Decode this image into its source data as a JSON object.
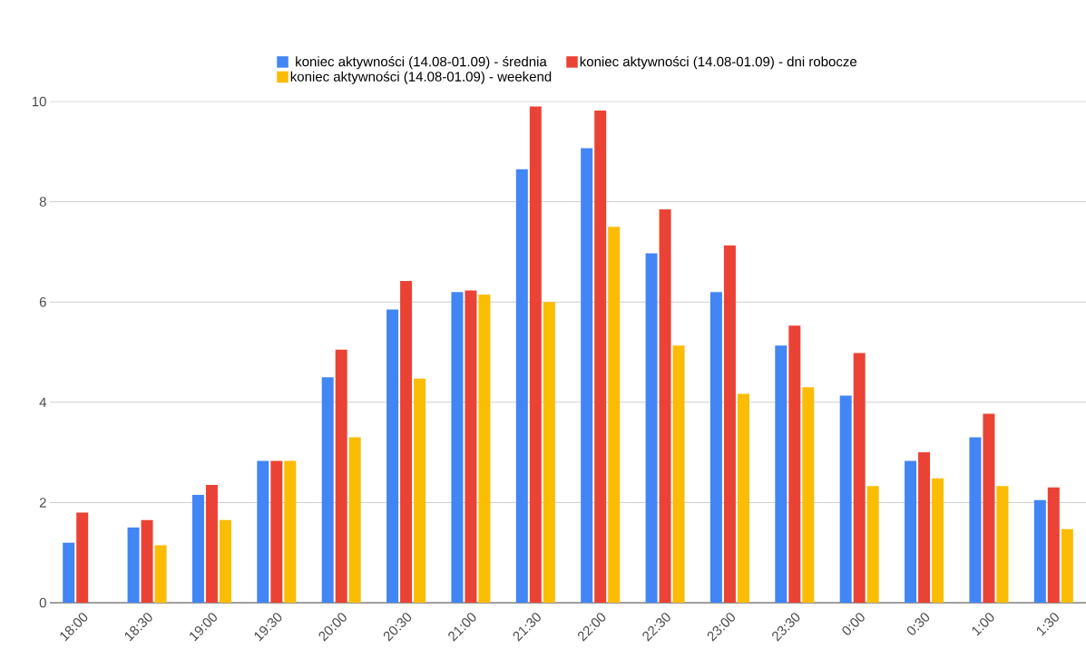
{
  "chart_data": {
    "type": "bar",
    "categories": [
      "18:00",
      "18:30",
      "19:00",
      "19:30",
      "20:00",
      "20:30",
      "21:00",
      "21:30",
      "22:00",
      "22:30",
      "23:00",
      "23:30",
      "0:00",
      "0:30",
      "1:00",
      "1:30"
    ],
    "series": [
      {
        "name": "koniec aktywności (14.08-01.09) - średnia",
        "color": "#4285f4",
        "values": [
          1.2,
          1.5,
          2.15,
          2.83,
          4.5,
          5.85,
          6.2,
          8.65,
          9.07,
          6.97,
          6.2,
          5.13,
          4.13,
          2.83,
          3.3,
          2.05
        ]
      },
      {
        "name": "koniec aktywności (14.08-01.09) - dni robocze",
        "color": "#ea4335",
        "values": [
          1.8,
          1.65,
          2.35,
          2.83,
          5.05,
          6.42,
          6.23,
          9.9,
          9.82,
          7.85,
          7.13,
          5.53,
          4.98,
          3.0,
          3.77,
          2.3
        ]
      },
      {
        "name": "koniec aktywności (14.08-01.09) - weekend",
        "color": "#fbbc04",
        "values": [
          0,
          1.15,
          1.65,
          2.83,
          3.3,
          4.47,
          6.15,
          6.0,
          7.5,
          5.13,
          4.17,
          4.3,
          2.33,
          2.48,
          2.33,
          1.47
        ]
      }
    ],
    "ylim": [
      0,
      10
    ],
    "yticks": [
      0,
      2,
      4,
      6,
      8,
      10
    ],
    "grid": "y",
    "legend": "top"
  }
}
